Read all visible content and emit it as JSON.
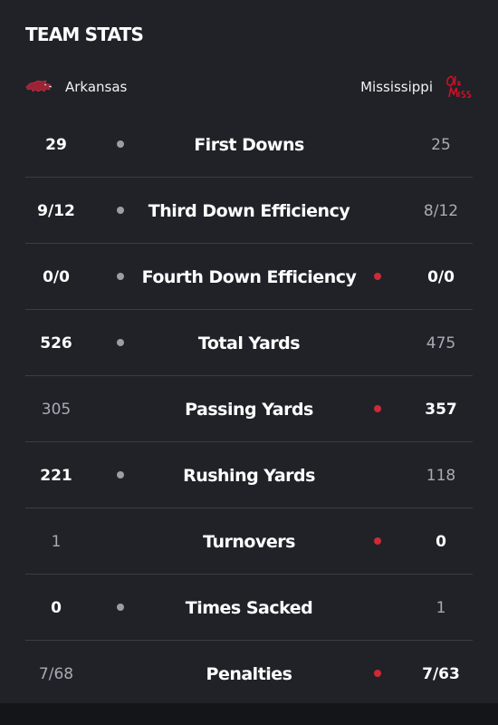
{
  "header": {
    "title": "TEAM STATS"
  },
  "teams": {
    "home": {
      "name": "Arkansas",
      "logo": "razorback-logo-icon",
      "color": "#9d2235"
    },
    "away": {
      "name": "Mississippi",
      "logo": "ole-miss-logo-icon",
      "color": "#ce1126"
    }
  },
  "colors": {
    "background": "#202228",
    "left_dot": "#9a9ea6",
    "right_dot": "#cc2b35"
  },
  "stats": [
    {
      "label": "First Downs",
      "left": "29",
      "right": "25",
      "advantage": "left"
    },
    {
      "label": "Third Down Efficiency",
      "left": "9/12",
      "right": "8/12",
      "advantage": "left"
    },
    {
      "label": "Fourth Down Efficiency",
      "left": "0/0",
      "right": "0/0",
      "advantage": "both"
    },
    {
      "label": "Total Yards",
      "left": "526",
      "right": "475",
      "advantage": "left"
    },
    {
      "label": "Passing Yards",
      "left": "305",
      "right": "357",
      "advantage": "right"
    },
    {
      "label": "Rushing Yards",
      "left": "221",
      "right": "118",
      "advantage": "left"
    },
    {
      "label": "Turnovers",
      "left": "1",
      "right": "0",
      "advantage": "right"
    },
    {
      "label": "Times Sacked",
      "left": "0",
      "right": "1",
      "advantage": "left"
    },
    {
      "label": "Penalties",
      "left": "7/68",
      "right": "7/63",
      "advantage": "right"
    }
  ]
}
